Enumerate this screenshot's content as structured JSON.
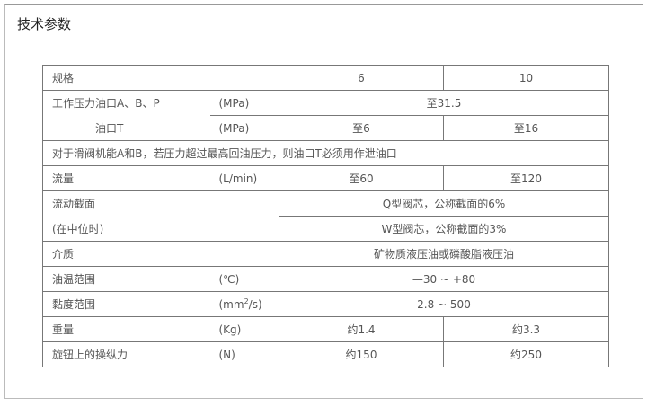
{
  "panel": {
    "title": "技术参数"
  },
  "table": {
    "spec": {
      "label": "规格",
      "v6": "6",
      "v10": "10"
    },
    "pressure": {
      "label_a": "工作压力油口A、B、P",
      "label_t": "油口T",
      "unit_a": "(MPa)",
      "unit_t": "(MPa)",
      "value_a": "至31.5",
      "t6": "至6",
      "t10": "至16"
    },
    "note": "对于滑阀机能A和B，若压力超过最高回油压力，则油口T必须用作泄油口",
    "flow": {
      "label": "流量",
      "unit": "(L/min)",
      "v6": "至60",
      "v10": "至120"
    },
    "section": {
      "label1": "流动截面",
      "label2": "(在中位时)",
      "q": "Q型阀芯，公称截面的6%",
      "w": "W型阀芯，公称截面的3%"
    },
    "medium": {
      "label": "介质",
      "value": "矿物质液压油或磷酸脂液压油"
    },
    "temp": {
      "label": "油温范围",
      "unit": "(℃)",
      "value": "—30 ~ +80"
    },
    "visc": {
      "label": "黏度范围",
      "unit_pre": "(mm",
      "unit_sup": "2",
      "unit_post": "/s)",
      "value": "2.8 ~ 500"
    },
    "weight": {
      "label": "重量",
      "unit": "(Kg)",
      "v6": "约1.4",
      "v10": "约3.3"
    },
    "force": {
      "label": "旋钮上的操纵力",
      "unit": "(N)",
      "v6": "约150",
      "v10": "约250"
    }
  }
}
